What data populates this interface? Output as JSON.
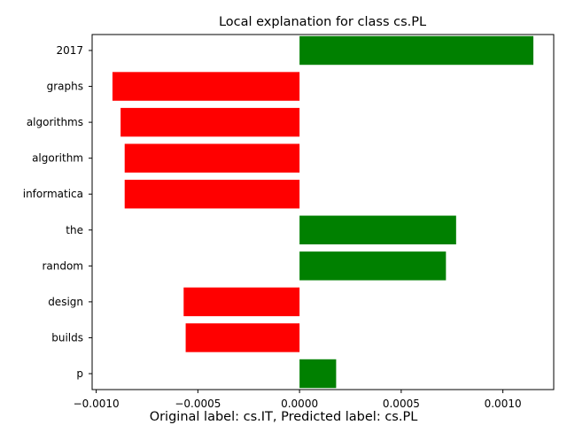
{
  "chart_data": {
    "type": "bar",
    "orientation": "horizontal",
    "title": "Local explanation for class cs.PL",
    "caption": "Original label: cs.IT, Predicted label: cs.PL",
    "categories": [
      "2017",
      "graphs",
      "algorithms",
      "algorithm",
      "informatica",
      "the",
      "random",
      "design",
      "builds",
      "p"
    ],
    "values": [
      0.00115,
      -0.00092,
      -0.00088,
      -0.00086,
      -0.00086,
      0.00077,
      0.00072,
      -0.00057,
      -0.00056,
      0.00018
    ],
    "xlim": [
      -0.00102,
      0.00125
    ],
    "xticks": [
      -0.001,
      -0.0005,
      0.0,
      0.0005,
      0.001
    ],
    "xtick_labels": [
      "−0.0010",
      "−0.0005",
      "0.0000",
      "0.0005",
      "0.0010"
    ],
    "xlabel": "",
    "ylabel": "",
    "grid": false,
    "colors": {
      "positive": "#008000",
      "negative": "#ff0000"
    }
  }
}
